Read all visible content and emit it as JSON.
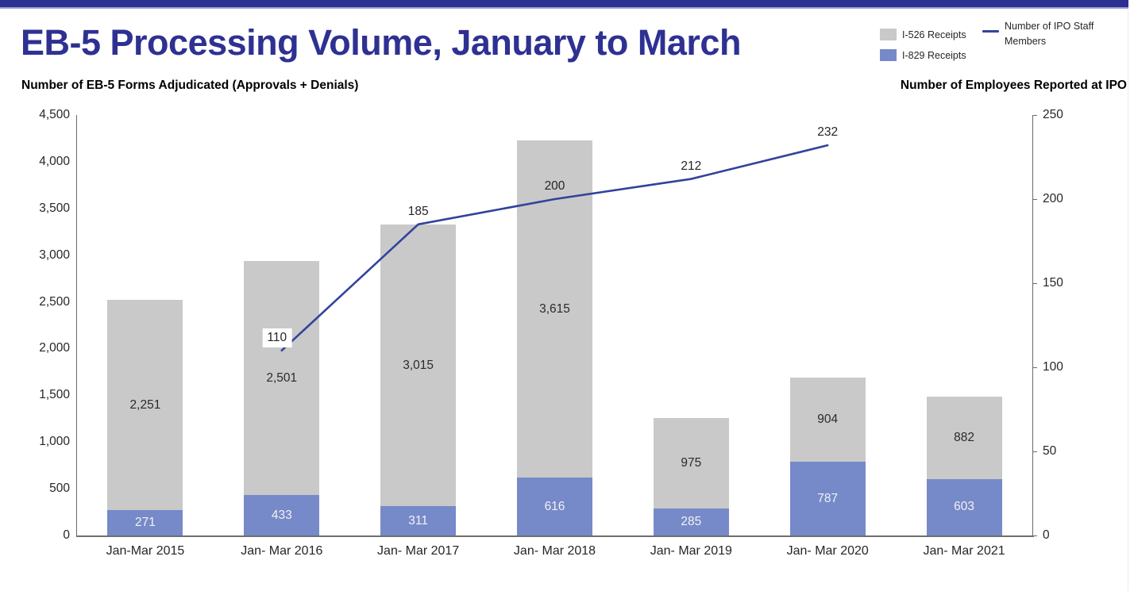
{
  "page": {
    "accent_bar_color": "#2E3192",
    "accent_bar_underline_color": "#9BA0CD"
  },
  "header": {
    "title": "EB-5 Processing Volume, January to March"
  },
  "legend": {
    "position": "top-right",
    "items": [
      {
        "label": "I-526 Receipts",
        "color": "#C9C9C9",
        "type": "square"
      },
      {
        "label": "I-829 Receipts",
        "color": "#7689C8",
        "type": "square"
      },
      {
        "label": "Number of IPO Staff Members",
        "color": "#33439B",
        "type": "line"
      }
    ]
  },
  "chart_data": {
    "type": "bar",
    "subtype": "stacked-bars-with-line-overlay",
    "title": "EB-5 Processing Volume, January to March",
    "grid": false,
    "categories": [
      "Jan-Mar 2015",
      "Jan- Mar 2016",
      "Jan- Mar 2017",
      "Jan- Mar 2018",
      "Jan- Mar 2019",
      "Jan- Mar 2020",
      "Jan- Mar 2021"
    ],
    "series": [
      {
        "name": "I-829 Receipts",
        "role": "bar-stack-bottom",
        "axis": "left",
        "color": "#7689C8",
        "label_color": "#F2F2F3",
        "values": [
          271,
          433,
          311,
          616,
          285,
          787,
          603
        ]
      },
      {
        "name": "I-526 Receipts",
        "role": "bar-stack-top",
        "axis": "left",
        "color": "#C9C9C9",
        "label_color": "#2B2B2B",
        "values": [
          2251,
          2501,
          3015,
          3615,
          975,
          904,
          882
        ]
      }
    ],
    "line_series": {
      "name": "Number of IPO Staff Members",
      "axis": "right",
      "color": "#33439B",
      "points": [
        {
          "category_index": 1,
          "value": 110,
          "boxed_label": true
        },
        {
          "category_index": 2,
          "value": 185
        },
        {
          "category_index": 3,
          "value": 200
        },
        {
          "category_index": 4,
          "value": 212
        },
        {
          "category_index": 5,
          "value": 232
        }
      ]
    },
    "axes": {
      "left": {
        "title": "Number of EB-5 Forms Adjudicated (Approvals + Denials)",
        "min": 0,
        "max": 4500,
        "tick_step": 500,
        "tick_format": "thousands-comma"
      },
      "right": {
        "title": "Number of Employees Reported at IPO",
        "min": 0,
        "max": 250,
        "tick_step": 50,
        "tick_format": "plain"
      }
    }
  }
}
